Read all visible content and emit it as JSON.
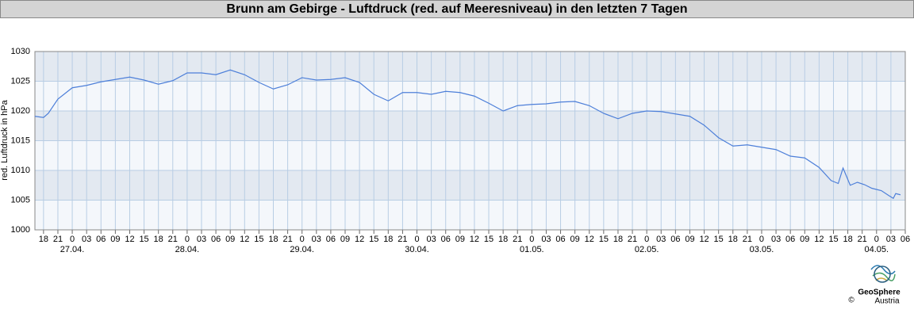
{
  "chart_data": {
    "type": "line",
    "title": "Brunn am Gebirge - Luftdruck (red. auf Meeresniveau) in den letzten 7 Tagen",
    "y_label": "red. Luftdruck in hPa",
    "x": [
      16.2,
      18,
      19,
      21,
      24,
      27,
      30,
      33,
      36,
      39,
      42,
      45,
      48,
      51,
      54,
      57,
      60,
      63,
      66,
      69,
      72,
      75,
      78,
      81,
      84,
      87,
      90,
      93,
      96,
      99,
      102,
      105,
      108,
      111,
      114,
      117,
      120,
      123,
      126,
      129,
      132,
      135,
      138,
      141,
      144,
      147,
      150,
      153,
      156,
      159,
      162,
      165,
      168,
      171,
      174,
      177,
      180,
      182.5,
      184,
      185,
      186.5,
      188,
      189.5,
      191,
      193,
      194.5,
      195.5,
      196,
      197
    ],
    "values": [
      1019.1,
      1018.9,
      1019.6,
      1022.0,
      1023.9,
      1024.3,
      1024.9,
      1025.3,
      1025.7,
      1025.2,
      1024.5,
      1025.1,
      1026.4,
      1026.4,
      1026.1,
      1026.9,
      1026.1,
      1024.8,
      1023.7,
      1024.4,
      1025.6,
      1025.2,
      1025.3,
      1025.6,
      1024.8,
      1022.8,
      1021.7,
      1023.1,
      1023.1,
      1022.8,
      1023.3,
      1023.1,
      1022.5,
      1021.3,
      1020.0,
      1020.9,
      1021.1,
      1021.2,
      1021.5,
      1021.6,
      1020.9,
      1019.6,
      1018.7,
      1019.6,
      1020.0,
      1019.9,
      1019.5,
      1019.1,
      1017.6,
      1015.5,
      1014.1,
      1014.3,
      1013.9,
      1013.5,
      1012.4,
      1012.1,
      1010.5,
      1008.3,
      1007.8,
      1010.4,
      1007.5,
      1008.0,
      1007.6,
      1007.0,
      1006.6,
      1005.8,
      1005.3,
      1006.1,
      1005.9
    ],
    "color": "#4d7fd9",
    "xlim": [
      16.2,
      198
    ],
    "ylim": [
      1000,
      1030
    ],
    "yticks": [
      1000,
      1005,
      1010,
      1015,
      1020,
      1025,
      1030
    ],
    "xticks": [
      18,
      21,
      {
        "value": 24,
        "label": "0"
      },
      {
        "value": 27,
        "label": "03"
      },
      {
        "value": 30,
        "label": "06"
      },
      {
        "value": 33,
        "label": "09"
      },
      {
        "value": 36,
        "label": "12"
      },
      {
        "value": 39,
        "label": "15"
      },
      {
        "value": 42,
        "label": "18"
      },
      {
        "value": 45,
        "label": "21"
      },
      {
        "value": 48,
        "label": "0"
      },
      {
        "value": 51,
        "label": "03"
      },
      {
        "value": 54,
        "label": "06"
      },
      {
        "value": 57,
        "label": "09"
      },
      {
        "value": 60,
        "label": "12"
      },
      {
        "value": 63,
        "label": "15"
      },
      {
        "value": 66,
        "label": "18"
      },
      {
        "value": 69,
        "label": "21"
      },
      {
        "value": 72,
        "label": "0"
      },
      {
        "value": 75,
        "label": "03"
      },
      {
        "value": 78,
        "label": "06"
      },
      {
        "value": 81,
        "label": "09"
      },
      {
        "value": 84,
        "label": "12"
      },
      {
        "value": 87,
        "label": "15"
      },
      {
        "value": 90,
        "label": "18"
      },
      {
        "value": 93,
        "label": "21"
      },
      {
        "value": 96,
        "label": "0"
      },
      {
        "value": 99,
        "label": "03"
      },
      {
        "value": 102,
        "label": "06"
      },
      {
        "value": 105,
        "label": "09"
      },
      {
        "value": 108,
        "label": "12"
      },
      {
        "value": 111,
        "label": "15"
      },
      {
        "value": 114,
        "label": "18"
      },
      {
        "value": 117,
        "label": "21"
      },
      {
        "value": 120,
        "label": "0"
      },
      {
        "value": 123,
        "label": "03"
      },
      {
        "value": 126,
        "label": "06"
      },
      {
        "value": 129,
        "label": "09"
      },
      {
        "value": 132,
        "label": "12"
      },
      {
        "value": 135,
        "label": "15"
      },
      {
        "value": 138,
        "label": "18"
      },
      {
        "value": 141,
        "label": "21"
      },
      {
        "value": 144,
        "label": "0"
      },
      {
        "value": 147,
        "label": "03"
      },
      {
        "value": 150,
        "label": "06"
      },
      {
        "value": 153,
        "label": "09"
      },
      {
        "value": 156,
        "label": "12"
      },
      {
        "value": 159,
        "label": "15"
      },
      {
        "value": 162,
        "label": "18"
      },
      {
        "value": 165,
        "label": "21"
      },
      {
        "value": 168,
        "label": "0"
      },
      {
        "value": 171,
        "label": "03"
      },
      {
        "value": 174,
        "label": "06"
      },
      {
        "value": 177,
        "label": "09"
      },
      {
        "value": 180,
        "label": "12"
      },
      {
        "value": 183,
        "label": "15"
      },
      {
        "value": 186,
        "label": "18"
      },
      {
        "value": 189,
        "label": "21"
      },
      {
        "value": 192,
        "label": "0"
      },
      {
        "value": 195,
        "label": "03"
      },
      {
        "value": 198,
        "label": "06"
      }
    ],
    "date_ticks": [
      {
        "value": 24,
        "label": "27.04."
      },
      {
        "value": 48,
        "label": "28.04."
      },
      {
        "value": 72,
        "label": "29.04."
      },
      {
        "value": 96,
        "label": "30.04."
      },
      {
        "value": 120,
        "label": "01.05."
      },
      {
        "value": 144,
        "label": "02.05."
      },
      {
        "value": 168,
        "label": "03.05."
      },
      {
        "value": 192,
        "label": "04.05."
      }
    ],
    "grid": true
  },
  "logo": {
    "name": "GeoSphere",
    "sub": "Austria",
    "copyright": "©"
  }
}
